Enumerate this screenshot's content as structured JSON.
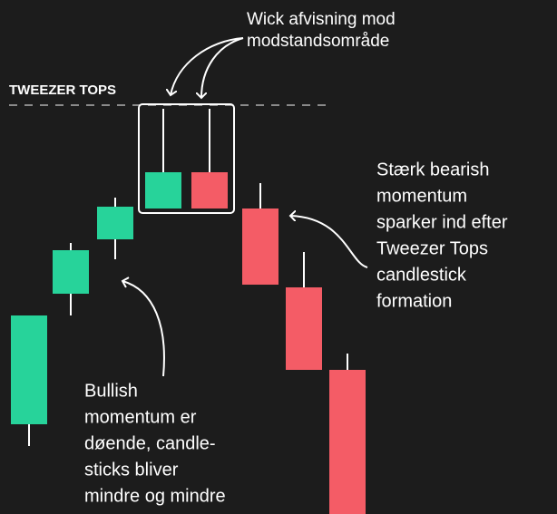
{
  "top_note": {
    "lines": [
      "Wick afvisning mod",
      "modstandsområde"
    ]
  },
  "label": "TWEEZER TOPS",
  "right_note": {
    "lines": [
      "Stærk bearish",
      "momentum",
      "sparker ind efter",
      "Tweezer Tops",
      "candlestick",
      "formation"
    ]
  },
  "bottom_note": {
    "lines": [
      "Bullish",
      "momentum er",
      "døende, candle-",
      "sticks bliver",
      "mindre og mindre"
    ]
  }
}
